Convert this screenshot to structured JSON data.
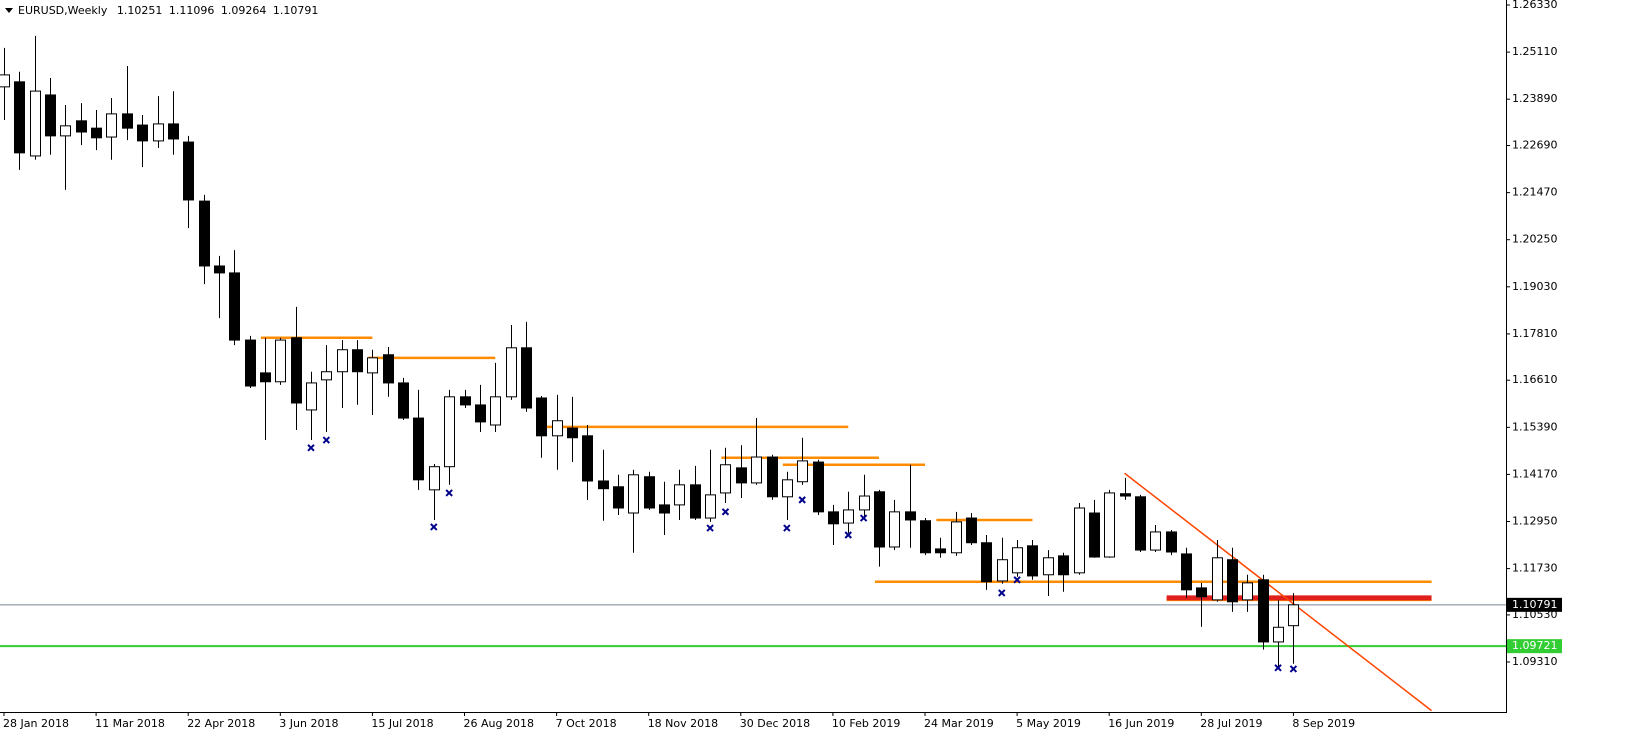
{
  "chart_data": {
    "type": "candlestick",
    "title": "EURUSD,Weekly",
    "categories": [
      "28 Jan 2018",
      null,
      null,
      null,
      null,
      null,
      "11 Mar 2018",
      null,
      null,
      null,
      null,
      null,
      "22 Apr 2018",
      null,
      null,
      null,
      null,
      null,
      "3 Jun 2018",
      null,
      null,
      null,
      null,
      null,
      "15 Jul 2018",
      null,
      null,
      null,
      null,
      null,
      "26 Aug 2018",
      null,
      null,
      null,
      null,
      null,
      "7 Oct 2018",
      null,
      null,
      null,
      null,
      null,
      "18 Nov 2018",
      null,
      null,
      null,
      null,
      null,
      "30 Dec 2018",
      null,
      null,
      null,
      null,
      null,
      "10 Feb 2019",
      null,
      null,
      null,
      null,
      null,
      "24 Mar 2019",
      null,
      null,
      null,
      null,
      null,
      "5 May 2019",
      null,
      null,
      null,
      null,
      null,
      "16 Jun 2019",
      null,
      null,
      null,
      null,
      null,
      "28 Jul 2019",
      null,
      null,
      null,
      null,
      null,
      "8 Sep 2019"
    ],
    "open": [
      1.2421,
      1.2434,
      1.2242,
      1.24,
      1.2294,
      1.2333,
      1.2314,
      1.2291,
      1.2351,
      1.2322,
      1.2281,
      1.2325,
      1.2278,
      1.2125,
      1.1957,
      1.1939,
      1.1765,
      1.168,
      1.1657,
      1.1771,
      1.1584,
      1.1662,
      1.1683,
      1.174,
      1.168,
      1.1727,
      1.1654,
      1.1563,
      1.1377,
      1.1437,
      1.1618,
      1.1597,
      1.1545,
      1.1618,
      1.1745,
      1.1615,
      1.1517,
      1.1537,
      1.1517,
      1.14,
      1.1385,
      1.1317,
      1.1411,
      1.1338,
      1.1338,
      1.139,
      1.1304,
      1.1369,
      1.1434,
      1.1395,
      1.1462,
      1.1359,
      1.1398,
      1.1449,
      1.132,
      1.1291,
      1.1325,
      1.1372,
      1.1229,
      1.132,
      1.1297,
      1.1224,
      1.1214,
      1.1304,
      1.124,
      1.1141,
      1.1162,
      1.1232,
      1.1157,
      1.1206,
      1.1162,
      1.1317,
      1.1203,
      1.1367,
      1.1359,
      1.1221,
      1.1268,
      1.1211,
      1.1123,
      1.1092,
      1.1196,
      1.1092,
      1.1144,
      1.0983,
      1.10251
    ],
    "high": [
      1.2522,
      1.246,
      1.2553,
      1.2444,
      1.2374,
      1.2379,
      1.2361,
      1.2392,
      1.2475,
      1.2348,
      1.2397,
      1.241,
      1.2294,
      1.2141,
      1.1983,
      1.1998,
      1.1776,
      1.1771,
      1.1771,
      1.1851,
      1.1683,
      1.1752,
      1.1765,
      1.1765,
      1.174,
      1.1747,
      1.1667,
      1.1636,
      1.1444,
      1.1636,
      1.1636,
      1.1649,
      1.1706,
      1.1804,
      1.1812,
      1.162,
      1.1623,
      1.1618,
      1.1545,
      1.1481,
      1.1416,
      1.1429,
      1.1424,
      1.1398,
      1.1429,
      1.1439,
      1.1481,
      1.1486,
      1.1493,
      1.1563,
      1.1468,
      1.1424,
      1.1512,
      1.1455,
      1.1338,
      1.1372,
      1.1416,
      1.1377,
      1.1351,
      1.1442,
      1.1304,
      1.1253,
      1.132,
      1.1317,
      1.126,
      1.1253,
      1.1247,
      1.1247,
      1.1221,
      1.1214,
      1.1343,
      1.1351,
      1.1377,
      1.1408,
      1.1364,
      1.1286,
      1.1273,
      1.1227,
      1.1136,
      1.1247,
      1.1227,
      1.1157,
      1.1157,
      1.1092,
      1.11096
    ],
    "low": [
      1.2335,
      1.2206,
      1.2232,
      1.2245,
      1.2154,
      1.227,
      1.2257,
      1.2232,
      1.2283,
      1.2213,
      1.2263,
      1.2245,
      1.2055,
      1.191,
      1.1822,
      1.1752,
      1.1641,
      1.1506,
      1.1649,
      1.1532,
      1.1506,
      1.1527,
      1.1589,
      1.1597,
      1.1571,
      1.1618,
      1.1558,
      1.1377,
      1.1299,
      1.139,
      1.1589,
      1.1527,
      1.1527,
      1.161,
      1.1579,
      1.146,
      1.1429,
      1.1449,
      1.1351,
      1.1297,
      1.1312,
      1.1214,
      1.1325,
      1.126,
      1.1299,
      1.1299,
      1.1294,
      1.1343,
      1.1356,
      1.139,
      1.1351,
      1.1299,
      1.139,
      1.1312,
      1.1234,
      1.1265,
      1.1299,
      1.1178,
      1.1221,
      1.1227,
      1.1208,
      1.1201,
      1.1206,
      1.1234,
      1.1118,
      1.1134,
      1.1152,
      1.1144,
      1.1102,
      1.1113,
      1.1157,
      1.1201,
      1.1201,
      1.1351,
      1.1216,
      1.1216,
      1.1208,
      1.1097,
      1.1022,
      1.1087,
      1.1061,
      1.1061,
      1.0963,
      1.0916,
      1.09264
    ],
    "close": [
      1.2452,
      1.225,
      1.241,
      1.2294,
      1.232,
      1.2304,
      1.2289,
      1.2351,
      1.2314,
      1.2281,
      1.2325,
      1.2286,
      1.2128,
      1.1957,
      1.1939,
      1.1765,
      1.1646,
      1.1657,
      1.1765,
      1.1602,
      1.1654,
      1.1683,
      1.174,
      1.1683,
      1.1719,
      1.1654,
      1.1563,
      1.1403,
      1.1437,
      1.1618,
      1.1597,
      1.1553,
      1.1618,
      1.1745,
      1.1589,
      1.1517,
      1.1556,
      1.1512,
      1.14,
      1.138,
      1.133,
      1.1416,
      1.133,
      1.1317,
      1.139,
      1.1304,
      1.1364,
      1.1442,
      1.1395,
      1.1462,
      1.1359,
      1.1403,
      1.1452,
      1.132,
      1.1289,
      1.1325,
      1.1361,
      1.1229,
      1.132,
      1.1299,
      1.1214,
      1.1214,
      1.1294,
      1.124,
      1.1139,
      1.1196,
      1.1227,
      1.1154,
      1.1201,
      1.1157,
      1.133,
      1.1203,
      1.1369,
      1.1361,
      1.1221,
      1.1268,
      1.1216,
      1.1118,
      1.11,
      1.1201,
      1.1087,
      1.1136,
      1.0983,
      1.1021,
      1.10791
    ],
    "up_color": "#ffffff",
    "down_color": "#000000",
    "ylim": [
      1.08015,
      1.2646
    ],
    "yticks": [
      {
        "value": 1.2633,
        "label": "1.26330"
      },
      {
        "value": 1.2511,
        "label": "1.25110"
      },
      {
        "value": 1.2389,
        "label": "1.23890"
      },
      {
        "value": 1.2269,
        "label": "1.22690"
      },
      {
        "value": 1.2147,
        "label": "1.21470"
      },
      {
        "value": 1.2025,
        "label": "1.20250"
      },
      {
        "value": 1.1903,
        "label": "1.19030"
      },
      {
        "value": 1.1781,
        "label": "1.17810"
      },
      {
        "value": 1.1661,
        "label": "1.16610"
      },
      {
        "value": 1.1539,
        "label": "1.15390"
      },
      {
        "value": 1.1417,
        "label": "1.14170"
      },
      {
        "value": 1.1295,
        "label": "1.12950"
      },
      {
        "value": 1.1173,
        "label": "1.11730"
      },
      {
        "value": 1.1053,
        "label": "1.10530"
      },
      {
        "value": 1.0931,
        "label": "1.09310"
      }
    ],
    "grid": false,
    "levels": [
      {
        "value": 1.1771,
        "from": 17,
        "to": 24,
        "color": "#ff8c00"
      },
      {
        "value": 1.1719,
        "from": 24,
        "to": 32,
        "color": "#ff8c00"
      },
      {
        "value": 1.154,
        "from": 35,
        "to": 55,
        "color": "#ff8c00"
      },
      {
        "value": 1.146,
        "from": 47,
        "to": 57,
        "color": "#ff8c00"
      },
      {
        "value": 1.1442,
        "from": 51,
        "to": 60,
        "color": "#ff8c00"
      },
      {
        "value": 1.1299,
        "from": 61,
        "to": 67,
        "color": "#ff8c00"
      },
      {
        "value": 1.1139,
        "from": 57,
        "to": 93,
        "color": "#ff8c00"
      },
      {
        "value": 1.1092,
        "from": 76,
        "to": 93,
        "color": "#ff8c00"
      },
      {
        "value": 1.1097,
        "from": 76,
        "to": 93,
        "color": "#e0201a"
      }
    ],
    "trendline": {
      "from": 73,
      "to": 93,
      "values": [
        1.142,
        1.0805
      ],
      "color": "#ff4500"
    },
    "support": {
      "value": 1.09721,
      "color": "#32cd32"
    },
    "markers": {
      "index": [
        20,
        21,
        28,
        29,
        46,
        47,
        51,
        52,
        55,
        56,
        65,
        66,
        83,
        84
      ],
      "values": [
        1.1486,
        1.1506,
        1.1281,
        1.1369,
        1.1278,
        1.132,
        1.1278,
        1.1351,
        1.126,
        1.1304,
        1.111,
        1.1144,
        1.0916,
        1.0913
      ],
      "color": "#00008b"
    }
  }
}
